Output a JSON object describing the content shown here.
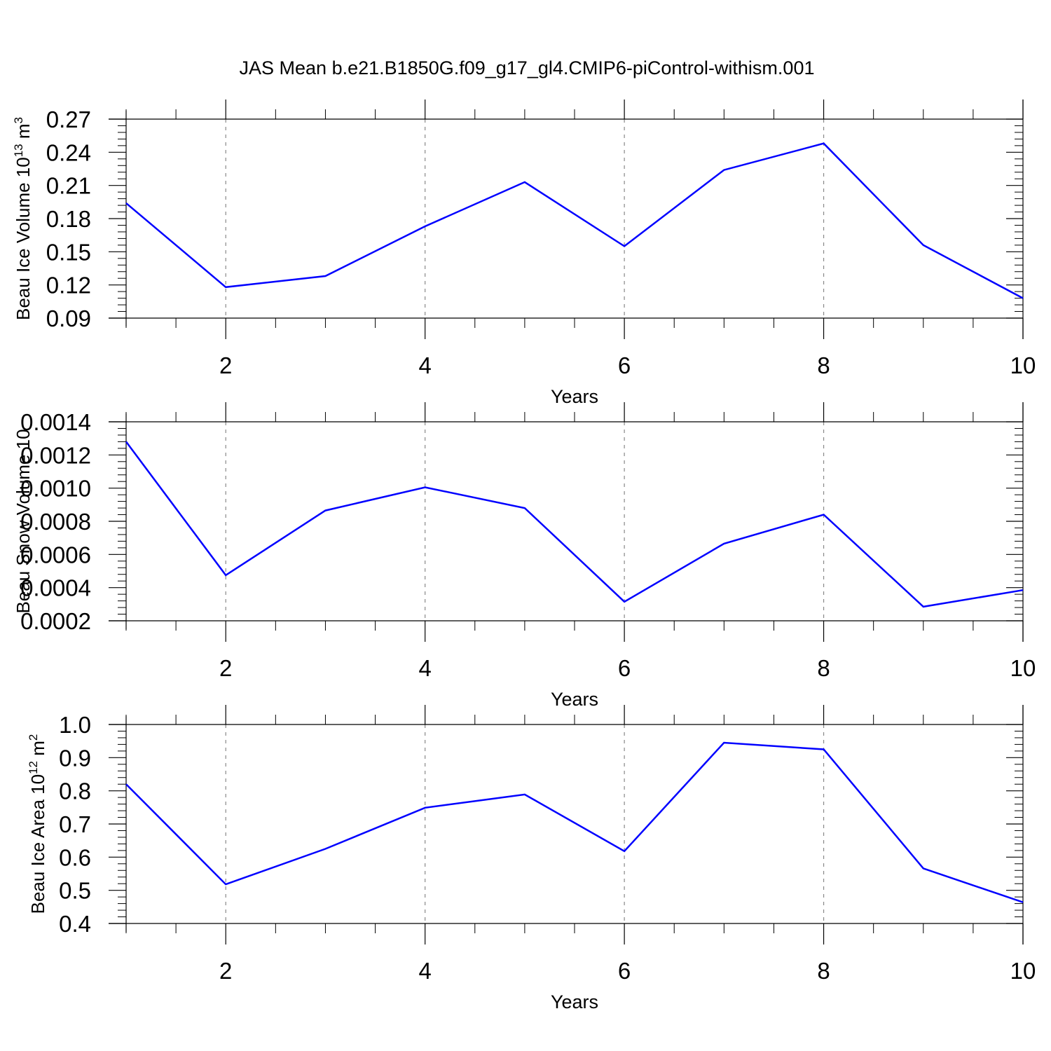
{
  "chart_data": [
    {
      "type": "line",
      "title": "JAS Mean b.e21.B1850G.f09_g17_gl4.CMIP6-piControl-withism.001",
      "xlabel": "Years",
      "ylabel": "Beau Ice Volume 10",
      "ylabel_exp": "13",
      "ylabel_unit": " m",
      "ylabel_unit_exp": "3",
      "xlim": [
        1,
        10
      ],
      "ylim": [
        0.09,
        0.27
      ],
      "x_ticks": [
        2,
        4,
        6,
        8,
        10
      ],
      "x_tick_labels": [
        "2",
        "4",
        "6",
        "8",
        "10"
      ],
      "y_ticks": [
        0.09,
        0.12,
        0.15,
        0.18,
        0.21,
        0.24,
        0.27
      ],
      "y_tick_labels": [
        "0.09",
        "0.12",
        "0.15",
        "0.18",
        "0.21",
        "0.24",
        "0.27"
      ],
      "grid": "vertical dashed at major x ticks",
      "line_color": "#0000ff",
      "series": [
        {
          "x": [
            1,
            2,
            3,
            4,
            5,
            6,
            7,
            8,
            9,
            10
          ],
          "values": [
            0.194,
            0.118,
            0.128,
            0.173,
            0.213,
            0.155,
            0.224,
            0.248,
            0.156,
            0.108
          ]
        }
      ]
    },
    {
      "type": "line",
      "xlabel": "Years",
      "ylabel": "Beau Snow Volume 10",
      "xlim": [
        1,
        10
      ],
      "ylim": [
        0.0002,
        0.0014
      ],
      "x_ticks": [
        2,
        4,
        6,
        8,
        10
      ],
      "x_tick_labels": [
        "2",
        "4",
        "6",
        "8",
        "10"
      ],
      "y_ticks": [
        0.0002,
        0.0004,
        0.0006,
        0.0008,
        0.001,
        0.0012,
        0.0014
      ],
      "y_tick_labels": [
        "0.0002",
        "0.0004",
        "0.0006",
        "0.0008",
        "0.0010",
        "0.0012",
        "0.0014"
      ],
      "grid": "vertical dashed at major x ticks",
      "line_color": "#0000ff",
      "series": [
        {
          "x": [
            1,
            2,
            3,
            4,
            5,
            6,
            7,
            8,
            9,
            10
          ],
          "values": [
            0.00128,
            0.000475,
            0.000865,
            0.001005,
            0.00088,
            0.000315,
            0.000665,
            0.00084,
            0.000285,
            0.000385
          ]
        }
      ]
    },
    {
      "type": "line",
      "xlabel": "Years",
      "ylabel": "Beau Ice Area 10",
      "ylabel_exp": "12",
      "ylabel_unit": " m",
      "ylabel_unit_exp": "2",
      "xlim": [
        1,
        10
      ],
      "ylim": [
        0.4,
        1.0
      ],
      "x_ticks": [
        2,
        4,
        6,
        8,
        10
      ],
      "x_tick_labels": [
        "2",
        "4",
        "6",
        "8",
        "10"
      ],
      "y_ticks": [
        0.4,
        0.5,
        0.6,
        0.7,
        0.8,
        0.9,
        1.0
      ],
      "y_tick_labels": [
        "0.4",
        "0.5",
        "0.6",
        "0.7",
        "0.8",
        "0.9",
        "1.0"
      ],
      "grid": "vertical dashed at major x ticks",
      "line_color": "#0000ff",
      "series": [
        {
          "x": [
            1,
            2,
            3,
            4,
            5,
            6,
            7,
            8,
            9,
            10
          ],
          "values": [
            0.82,
            0.518,
            0.625,
            0.749,
            0.789,
            0.618,
            0.945,
            0.925,
            0.566,
            0.464
          ]
        }
      ]
    }
  ]
}
